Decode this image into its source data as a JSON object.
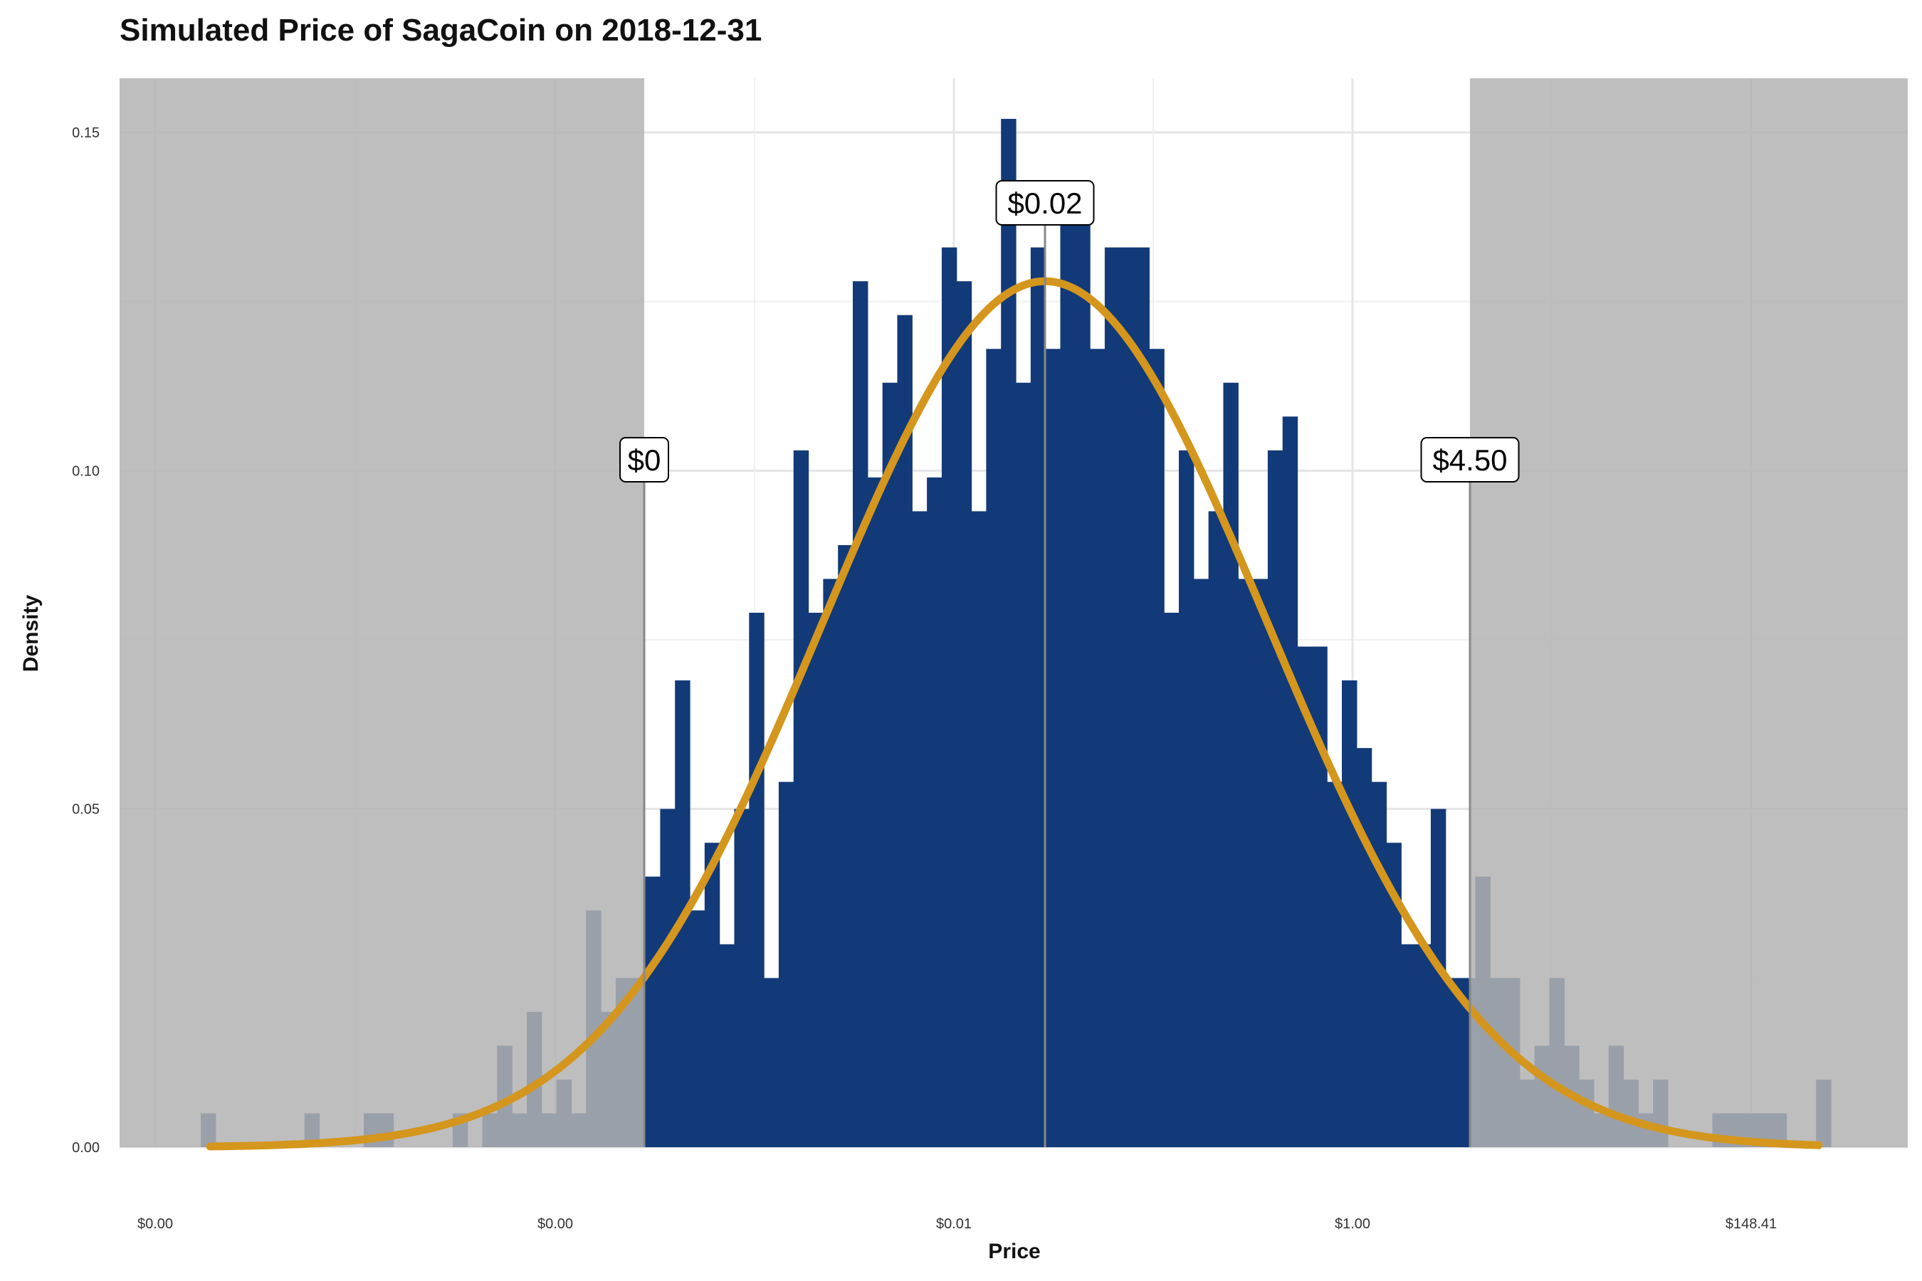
{
  "chart_data": {
    "type": "bar",
    "title": "Simulated Price of SagaCoin on 2018-12-31",
    "xlabel": "Price",
    "ylabel": "Density",
    "x_scale": "log (ticks labelled in $)",
    "x_ticks": [
      "$0.00",
      "$0.00",
      "$0.01",
      "$1.00",
      "$148.41"
    ],
    "y_ticks": [
      "0.00",
      "0.05",
      "0.10",
      "0.15"
    ],
    "ylim": [
      0,
      0.158
    ],
    "grid": true,
    "bar_color": "#123a78",
    "curve_color": "#d4961d",
    "shade_color": "#b3b3b3",
    "histogram_bins": [
      0.005,
      0.0,
      0.0,
      0.0,
      0.0,
      0.0,
      0.0,
      0.005,
      0.0,
      0.0,
      0.0,
      0.005,
      0.005,
      0.0,
      0.0,
      0.0,
      0.0,
      0.005,
      0.0,
      0.005,
      0.015,
      0.005,
      0.02,
      0.005,
      0.01,
      0.005,
      0.035,
      0.02,
      0.025,
      0.025,
      0.04,
      0.05,
      0.069,
      0.035,
      0.045,
      0.03,
      0.05,
      0.079,
      0.025,
      0.054,
      0.103,
      0.079,
      0.084,
      0.089,
      0.128,
      0.099,
      0.113,
      0.123,
      0.094,
      0.099,
      0.133,
      0.128,
      0.094,
      0.118,
      0.152,
      0.113,
      0.133,
      0.118,
      0.138,
      0.138,
      0.118,
      0.133,
      0.133,
      0.133,
      0.118,
      0.079,
      0.103,
      0.084,
      0.094,
      0.113,
      0.084,
      0.084,
      0.103,
      0.108,
      0.074,
      0.074,
      0.054,
      0.069,
      0.059,
      0.054,
      0.045,
      0.03,
      0.03,
      0.05,
      0.025,
      0.025,
      0.04,
      0.025,
      0.025,
      0.01,
      0.015,
      0.025,
      0.015,
      0.01,
      0.005,
      0.015,
      0.01,
      0.005,
      0.01,
      0.0,
      0.0,
      0.0,
      0.005,
      0.005,
      0.005,
      0.005,
      0.005,
      0.0,
      0.0,
      0.01
    ],
    "curve": {
      "peak_density": 0.128,
      "peak_label": "$0.02"
    },
    "interval": {
      "lower_label": "$0",
      "upper_label": "$4.50"
    }
  }
}
